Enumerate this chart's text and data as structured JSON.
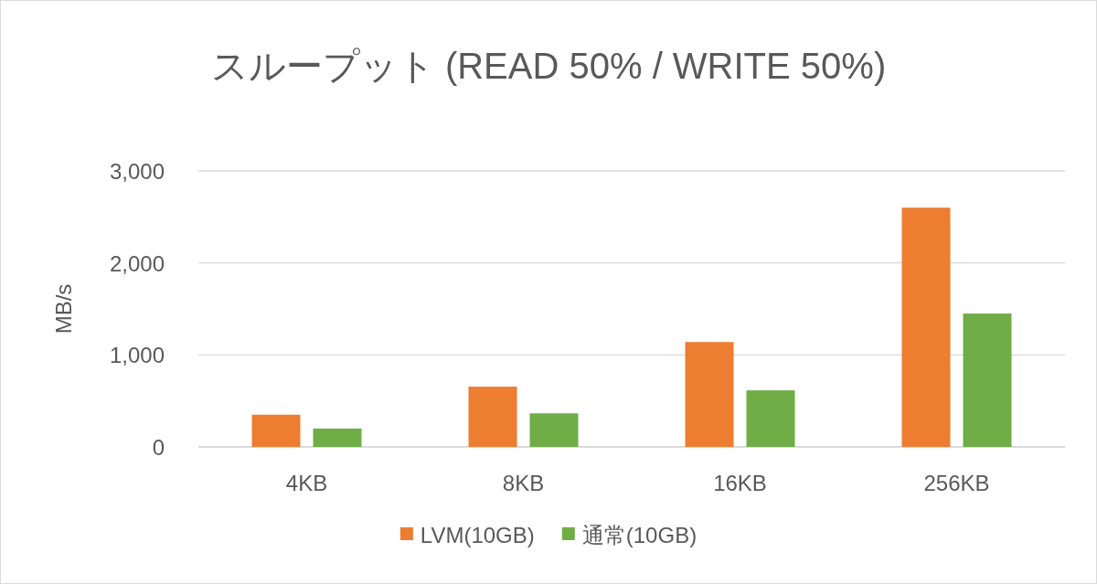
{
  "chart_data": {
    "type": "bar",
    "title": "スループット (READ 50% / WRITE 50%)",
    "ylabel": "MB/s",
    "categories": [
      "4KB",
      "8KB",
      "16KB",
      "256KB"
    ],
    "series": [
      {
        "name": "LVM(10GB)",
        "color": "#ed7d31",
        "values": [
          350,
          655,
          1140,
          2600
        ]
      },
      {
        "name": "通常(10GB)",
        "color": "#70ad47",
        "values": [
          200,
          365,
          615,
          1450
        ]
      }
    ],
    "ylim": [
      0,
      3000
    ],
    "yticks": [
      {
        "value": 0,
        "label": "0"
      },
      {
        "value": 1000,
        "label": "1,000"
      },
      {
        "value": 2000,
        "label": "2,000"
      },
      {
        "value": 3000,
        "label": "3,000"
      }
    ],
    "grid": "y",
    "legend": "bottom"
  }
}
